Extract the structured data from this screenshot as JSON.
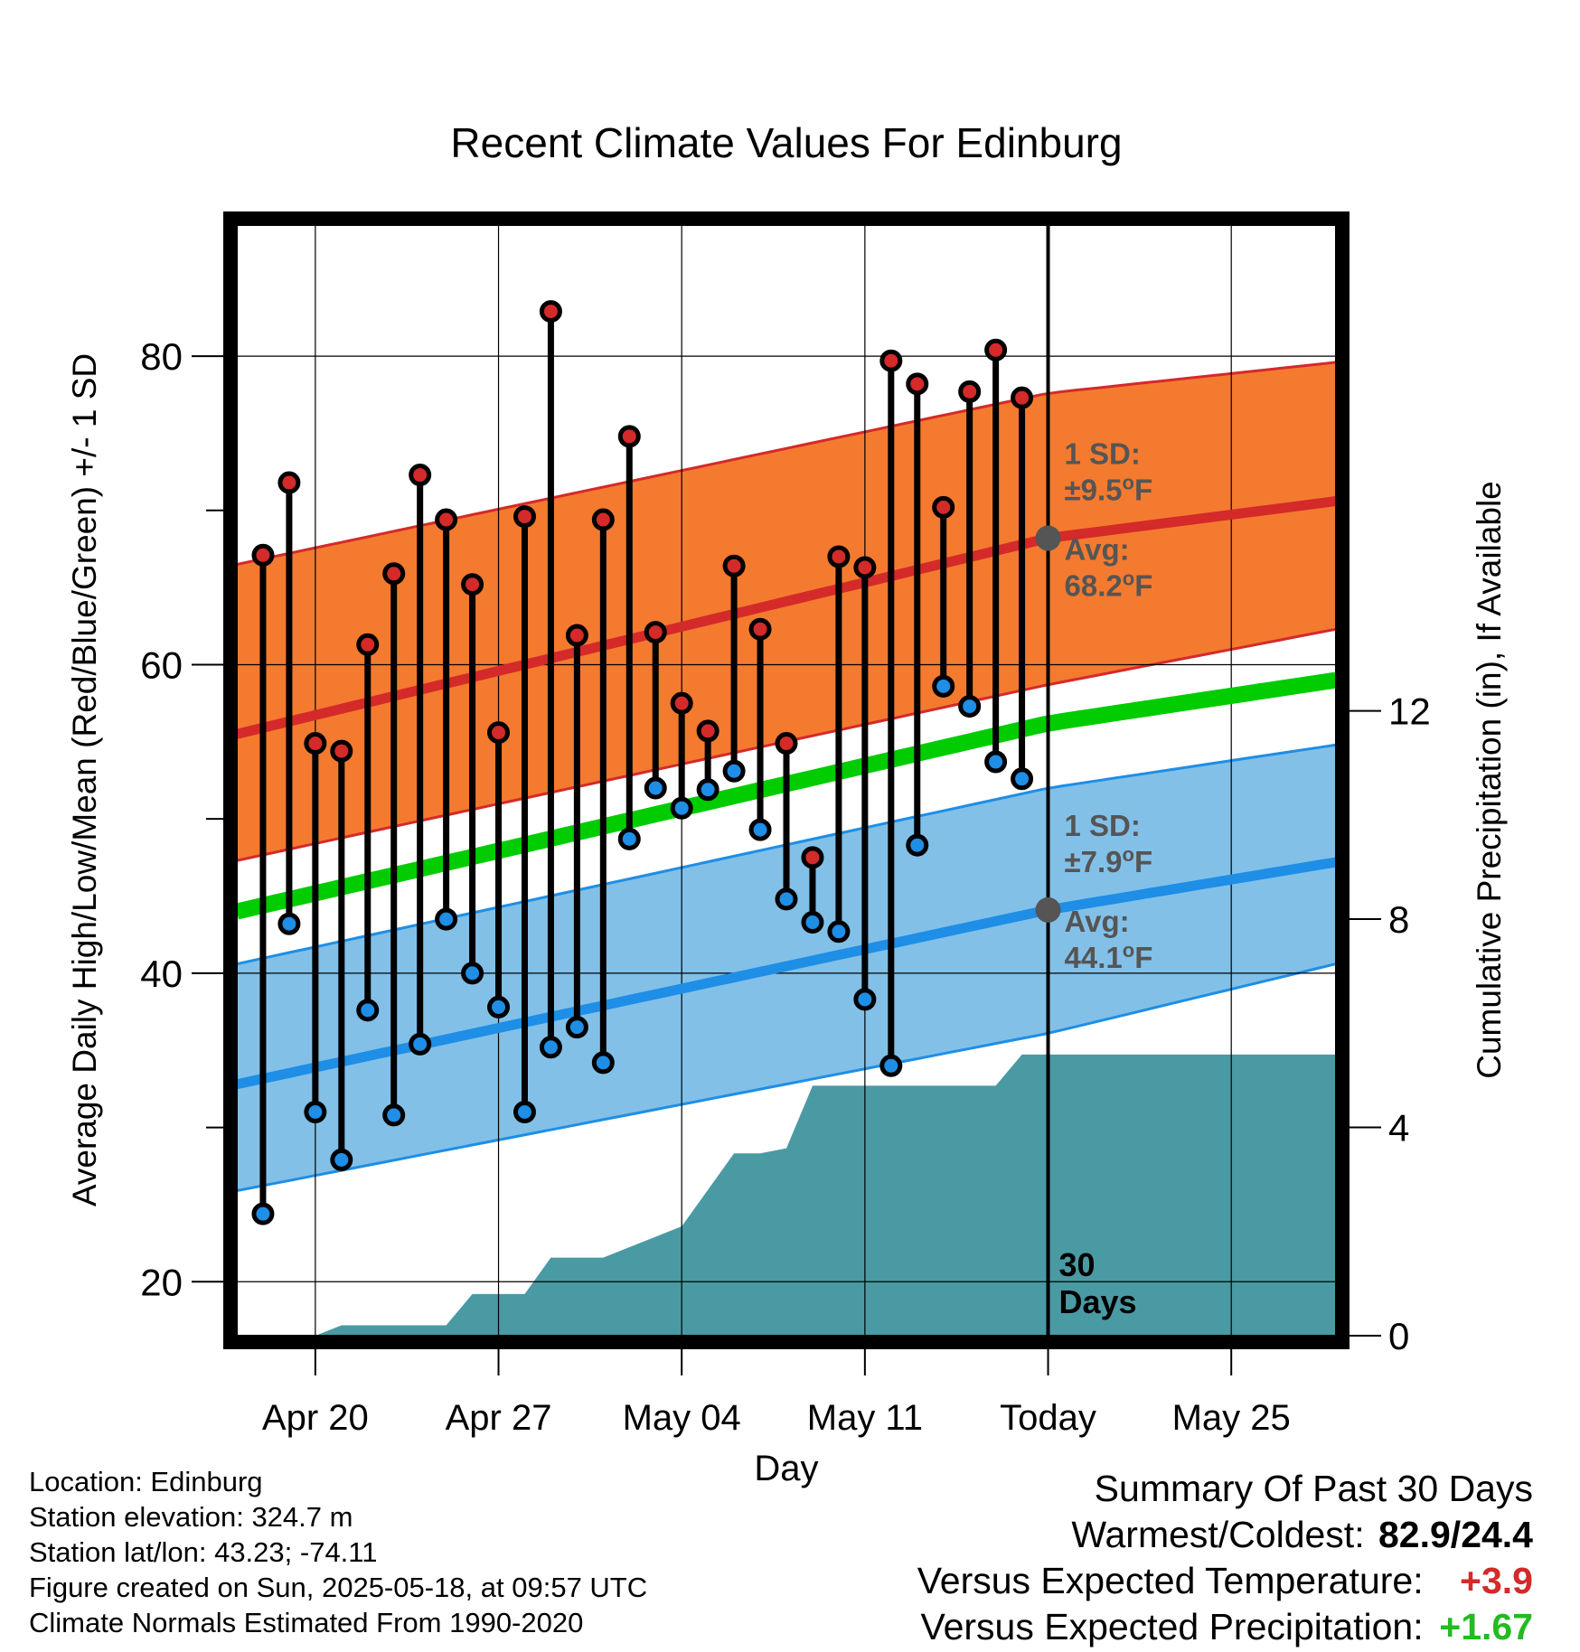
{
  "chart_data": {
    "type": "line",
    "title": "Recent Climate Values For Edinburg",
    "xlabel": "Day",
    "ylabel": "Average Daily High/Low/Mean (Red/Blue/Green) +/- 1 SD",
    "y2label": "Cumulative Precipitation (in), If Available",
    "ylim": [
      16.5,
      88.5
    ],
    "y2lim": [
      0,
      21.33
    ],
    "x_start": "2025-04-17",
    "x_end": "2025-05-29",
    "yticks": [
      "20",
      "40",
      "60",
      "80"
    ],
    "y2ticks": [
      "0",
      "4",
      "8",
      "12"
    ],
    "xticks": [
      {
        "date": "2025-04-20",
        "label": "Apr 20"
      },
      {
        "date": "2025-04-27",
        "label": "Apr 27"
      },
      {
        "date": "2025-05-04",
        "label": "May 04"
      },
      {
        "date": "2025-05-11",
        "label": "May 11"
      },
      {
        "date": "2025-05-18",
        "label": "Today"
      },
      {
        "date": "2025-05-25",
        "label": "May 25"
      }
    ],
    "today": "2025-05-18",
    "today_label": [
      "30",
      "Days"
    ],
    "grid": true,
    "colors": {
      "high_band": "#f47a2f",
      "high_mean": "#d42a2a",
      "low_band": "#82c0e8",
      "low_mean": "#1e8ee6",
      "overall_mean": "#00cc00",
      "precip": "#4a9aa4",
      "high_dot": "#d42a2a",
      "low_dot": "#1e8ee6",
      "annotation": "#555555"
    },
    "normals": {
      "dates": [
        "2025-04-17",
        "2025-05-18",
        "2025-05-29"
      ],
      "high_mean": [
        55.5,
        68.2,
        70.6
      ],
      "high_upper": [
        66.5,
        77.6,
        79.6
      ],
      "high_lower": [
        47.3,
        58.7,
        62.3
      ],
      "low_mean": [
        32.8,
        44.1,
        47.2
      ],
      "low_upper": [
        40.6,
        52.0,
        54.8
      ],
      "low_lower": [
        25.9,
        36.1,
        40.6
      ],
      "overall_mean": [
        44.0,
        56.2,
        59.0
      ]
    },
    "annotations": {
      "high": {
        "sd_label": "1 SD:",
        "sd_value": "±9.5",
        "avg_label": "Avg:",
        "avg_value": "68.2",
        "unit": "F"
      },
      "low": {
        "sd_label": "1 SD:",
        "sd_value": "±7.9",
        "avg_label": "Avg:",
        "avg_value": "44.1",
        "unit": "F"
      }
    },
    "daily": [
      {
        "date": "2025-04-18",
        "high": 67.1,
        "low": 24.4
      },
      {
        "date": "2025-04-19",
        "high": 71.8,
        "low": 43.2
      },
      {
        "date": "2025-04-20",
        "high": 54.9,
        "low": 31.0
      },
      {
        "date": "2025-04-21",
        "high": 54.4,
        "low": 27.9
      },
      {
        "date": "2025-04-22",
        "high": 61.3,
        "low": 37.6
      },
      {
        "date": "2025-04-23",
        "high": 65.9,
        "low": 30.8
      },
      {
        "date": "2025-04-24",
        "high": 72.3,
        "low": 35.4
      },
      {
        "date": "2025-04-25",
        "high": 69.4,
        "low": 43.5
      },
      {
        "date": "2025-04-26",
        "high": 65.2,
        "low": 40.0
      },
      {
        "date": "2025-04-27",
        "high": 55.6,
        "low": 37.8
      },
      {
        "date": "2025-04-28",
        "high": 69.6,
        "low": 31.0
      },
      {
        "date": "2025-04-29",
        "high": 82.9,
        "low": 35.2
      },
      {
        "date": "2025-04-30",
        "high": 61.9,
        "low": 36.5
      },
      {
        "date": "2025-05-01",
        "high": 69.4,
        "low": 34.2
      },
      {
        "date": "2025-05-02",
        "high": 74.8,
        "low": 48.7
      },
      {
        "date": "2025-05-03",
        "high": 62.1,
        "low": 52.0
      },
      {
        "date": "2025-05-04",
        "high": 57.5,
        "low": 50.7
      },
      {
        "date": "2025-05-05",
        "high": 55.7,
        "low": 51.9
      },
      {
        "date": "2025-05-06",
        "high": 66.4,
        "low": 53.1
      },
      {
        "date": "2025-05-07",
        "high": 62.3,
        "low": 49.3
      },
      {
        "date": "2025-05-08",
        "high": 54.9,
        "low": 44.8
      },
      {
        "date": "2025-05-09",
        "high": 47.5,
        "low": 43.3
      },
      {
        "date": "2025-05-10",
        "high": 67.0,
        "low": 42.7
      },
      {
        "date": "2025-05-11",
        "high": 66.3,
        "low": 38.3
      },
      {
        "date": "2025-05-12",
        "high": 79.7,
        "low": 34.0
      },
      {
        "date": "2025-05-13",
        "high": 78.2,
        "low": 48.3
      },
      {
        "date": "2025-05-14",
        "high": 70.2,
        "low": 58.6
      },
      {
        "date": "2025-05-15",
        "high": 77.7,
        "low": 57.3
      },
      {
        "date": "2025-05-16",
        "high": 80.4,
        "low": 53.7
      },
      {
        "date": "2025-05-17",
        "high": 77.3,
        "low": 52.6
      }
    ],
    "precip": [
      {
        "date": "2025-04-17",
        "value": 0.0
      },
      {
        "date": "2025-04-20",
        "value": 0.0
      },
      {
        "date": "2025-04-21",
        "value": 0.2
      },
      {
        "date": "2025-04-25",
        "value": 0.2
      },
      {
        "date": "2025-04-26",
        "value": 0.8
      },
      {
        "date": "2025-04-28",
        "value": 0.8
      },
      {
        "date": "2025-04-29",
        "value": 1.5
      },
      {
        "date": "2025-05-01",
        "value": 1.5
      },
      {
        "date": "2025-05-04",
        "value": 2.1
      },
      {
        "date": "2025-05-05",
        "value": 2.8
      },
      {
        "date": "2025-05-06",
        "value": 3.5
      },
      {
        "date": "2025-05-07",
        "value": 3.5
      },
      {
        "date": "2025-05-08",
        "value": 3.6
      },
      {
        "date": "2025-05-09",
        "value": 4.8
      },
      {
        "date": "2025-05-16",
        "value": 4.8
      },
      {
        "date": "2025-05-17",
        "value": 5.4
      },
      {
        "date": "2025-05-29",
        "value": 5.4
      }
    ]
  },
  "footer": {
    "location": "Location: Edinburg",
    "elevation": "Station elevation: 324.7 m",
    "latlon": "Station lat/lon: 43.23; -74.11",
    "created": "Figure created on Sun, 2025-05-18, at 09:57 UTC",
    "normals": "Climate Normals Estimated From 1990-2020"
  },
  "summary": {
    "title": "Summary Of Past 30 Days",
    "warmest_coldest_label": "Warmest/Coldest:",
    "warmest_coldest_value": "82.9/24.4",
    "temp_label": "Versus Expected Temperature:",
    "temp_value": "+3.9",
    "temp_color": "#d42a2a",
    "precip_label": "Versus Expected Precipitation:",
    "precip_value": "+1.67",
    "precip_color": "#22bb22"
  }
}
